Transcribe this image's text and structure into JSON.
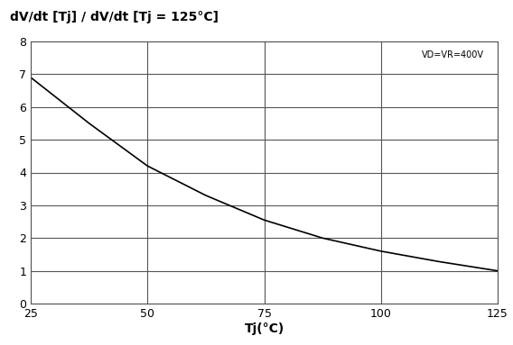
{
  "chart_data": {
    "type": "line",
    "title": "dV/dt [Tj] / dV/dt [Tj = 125°C]",
    "x_label": "Tj(°C)",
    "annotation": "VD=VR=400V",
    "x": [
      25,
      37.5,
      50,
      62.5,
      75,
      87.5,
      100,
      112.5,
      125
    ],
    "series": [
      {
        "name": "dV/dt",
        "color": "#000000",
        "values": [
          6.9,
          5.5,
          4.2,
          3.3,
          2.55,
          2.0,
          1.6,
          1.28,
          1.0
        ]
      }
    ],
    "xlim": [
      25,
      125
    ],
    "xticks": [
      25,
      50,
      75,
      100,
      125
    ],
    "ylim": [
      0,
      8
    ],
    "yticks": [
      0,
      1,
      2,
      3,
      4,
      5,
      6,
      7,
      8
    ],
    "grid": true
  }
}
